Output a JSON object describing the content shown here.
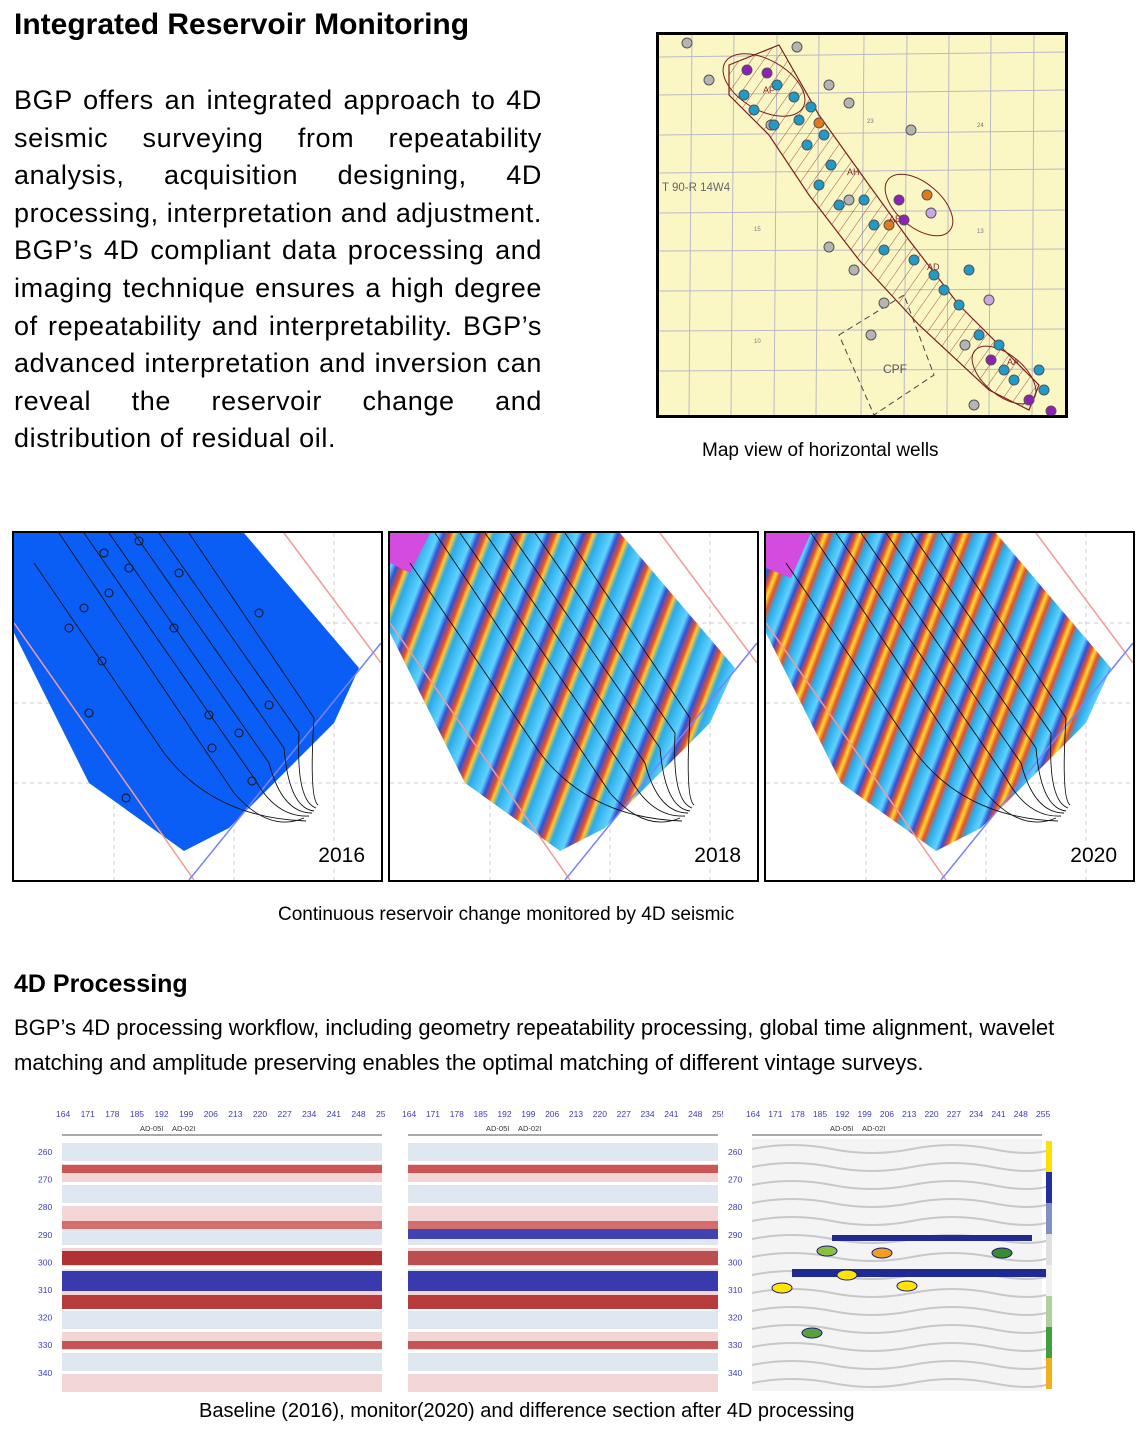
{
  "header": {
    "title": "Integrated Reservoir Monitoring"
  },
  "intro": {
    "text": "BGP offers an integrated approach to 4D seismic surveying  from repeatability analysis, acquisition designing, 4D processing, interpretation and adjustment. BGP’s 4D compliant data processing and imaging technique ensures a high degree of repeatability and interpretability. BGP’s advanced interpretation and inversion can reveal the reservoir change and distribution of residual oil."
  },
  "map": {
    "caption": "Map view of horizontal wells",
    "township_label": "T 90-R 14W4",
    "facility_label": "CPF",
    "pad_labels": [
      "AF",
      "AH",
      "AE",
      "AD",
      "AA"
    ],
    "section_numbers": [
      "23",
      "24",
      "15",
      "13",
      "10"
    ]
  },
  "monitoring": {
    "caption": "Continuous reservoir change monitored by 4D seismic",
    "panels": [
      {
        "year": "2016"
      },
      {
        "year": "2018"
      },
      {
        "year": "2020"
      }
    ]
  },
  "processing": {
    "title": "4D Processing",
    "text": "BGP’s 4D processing workflow, including  geometry repeatability processing, global time alignment, wavelet matching and amplitude preserving enables the optimal matching of different vintage surveys.",
    "caption": "Baseline (2016), monitor(2020) and difference section after 4D processing",
    "cdp_ticks": [
      "164",
      "171",
      "178",
      "185",
      "192",
      "199",
      "206",
      "213",
      "220",
      "227",
      "234",
      "241",
      "248",
      "255"
    ],
    "time_ticks": [
      "260",
      "270",
      "280",
      "290",
      "300",
      "310",
      "320",
      "330",
      "340"
    ],
    "well_labels": [
      "AD-05I",
      "AD-02I"
    ],
    "colors": {
      "tick_blue": "#3a3ac0",
      "red": "#c03030",
      "blue": "#2828a8"
    }
  }
}
